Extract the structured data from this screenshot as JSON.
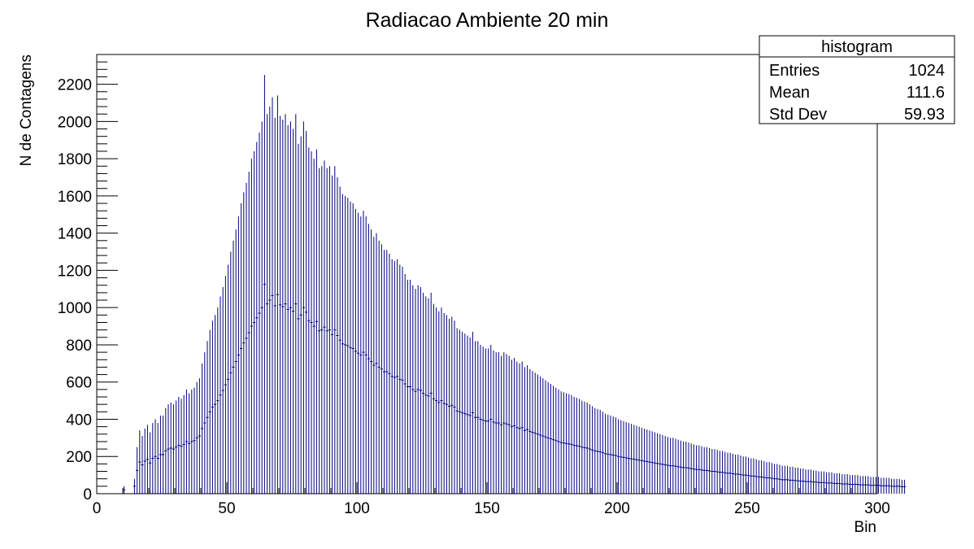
{
  "chart_data": {
    "type": "bar",
    "title": "Radiacao Ambiente 20 min",
    "xlabel": "Bin",
    "ylabel": "N de Contagens",
    "xlim": [
      0,
      300
    ],
    "ylim": [
      0,
      2360
    ],
    "xticks": [
      0,
      50,
      100,
      150,
      200,
      250,
      300
    ],
    "yticks": [
      0,
      200,
      400,
      600,
      800,
      1000,
      1200,
      1400,
      1600,
      1800,
      2000,
      2200
    ],
    "grid": false,
    "legend": "top-right",
    "bar_color": "#000080",
    "stats_box": {
      "header": "histogram",
      "rows": [
        {
          "label": "Entries",
          "value": "1024"
        },
        {
          "label": "Mean",
          "value": "111.6"
        },
        {
          "label": "Std Dev",
          "value": "59.93"
        }
      ]
    },
    "series": [
      {
        "bin_width": 1,
        "x_start": 0,
        "values": [
          0,
          0,
          0,
          0,
          0,
          0,
          0,
          0,
          0,
          0,
          40,
          0,
          0,
          0,
          80,
          250,
          340,
          310,
          350,
          370,
          330,
          380,
          400,
          380,
          420,
          420,
          460,
          480,
          490,
          480,
          500,
          520,
          510,
          530,
          560,
          540,
          560,
          570,
          600,
          620,
          700,
          760,
          820,
          880,
          930,
          960,
          1000,
          1060,
          1110,
          1170,
          1230,
          1300,
          1360,
          1420,
          1490,
          1560,
          1620,
          1670,
          1730,
          1800,
          1840,
          1890,
          1940,
          2000,
          2250,
          2040,
          2080,
          2130,
          2020,
          2140,
          2030,
          2010,
          2040,
          1980,
          2000,
          1960,
          2040,
          1880,
          1920,
          2000,
          1950,
          1860,
          1840,
          1800,
          1850,
          1750,
          1760,
          1790,
          1750,
          1760,
          1710,
          1760,
          1700,
          1650,
          1610,
          1600,
          1590,
          1570,
          1560,
          1530,
          1510,
          1490,
          1520,
          1490,
          1450,
          1420,
          1380,
          1400,
          1360,
          1340,
          1310,
          1310,
          1290,
          1260,
          1250,
          1260,
          1230,
          1220,
          1180,
          1150,
          1150,
          1120,
          1100,
          1120,
          1110,
          1080,
          1060,
          1050,
          1080,
          1020,
          1000,
          980,
          1000,
          970,
          960,
          940,
          950,
          930,
          890,
          880,
          870,
          860,
          850,
          840,
          870,
          820,
          820,
          800,
          790,
          780,
          780,
          800,
          770,
          760,
          760,
          740,
          760,
          750,
          740,
          720,
          730,
          710,
          700,
          710,
          680,
          690,
          670,
          660,
          650,
          640,
          630,
          620,
          610,
          600,
          590,
          580,
          570,
          560,
          550,
          545,
          540,
          535,
          530,
          520,
          515,
          510,
          500,
          495,
          490,
          480,
          470,
          460,
          455,
          450,
          440,
          430,
          425,
          420,
          415,
          410,
          400,
          395,
          390,
          385,
          380,
          375,
          370,
          365,
          360,
          355,
          350,
          345,
          340,
          335,
          330,
          325,
          320,
          315,
          310,
          305,
          300,
          300,
          295,
          290,
          285,
          280,
          280,
          275,
          270,
          265,
          260,
          260,
          255,
          250,
          250,
          245,
          240,
          240,
          235,
          230,
          230,
          225,
          220,
          220,
          215,
          210,
          210,
          205,
          200,
          200,
          195,
          190,
          190,
          185,
          180,
          180,
          175,
          170,
          170,
          165,
          160,
          160,
          155,
          150,
          150,
          150,
          145,
          145,
          140,
          140,
          135,
          135,
          130,
          130,
          130,
          125,
          125,
          120,
          120,
          120,
          115,
          115,
          115,
          110,
          110,
          110,
          105,
          105,
          105,
          100,
          100,
          100,
          100,
          95,
          95,
          95,
          95,
          90,
          90,
          90,
          90,
          85,
          85,
          85,
          85,
          80,
          80,
          80,
          80,
          75,
          75
        ]
      }
    ]
  }
}
